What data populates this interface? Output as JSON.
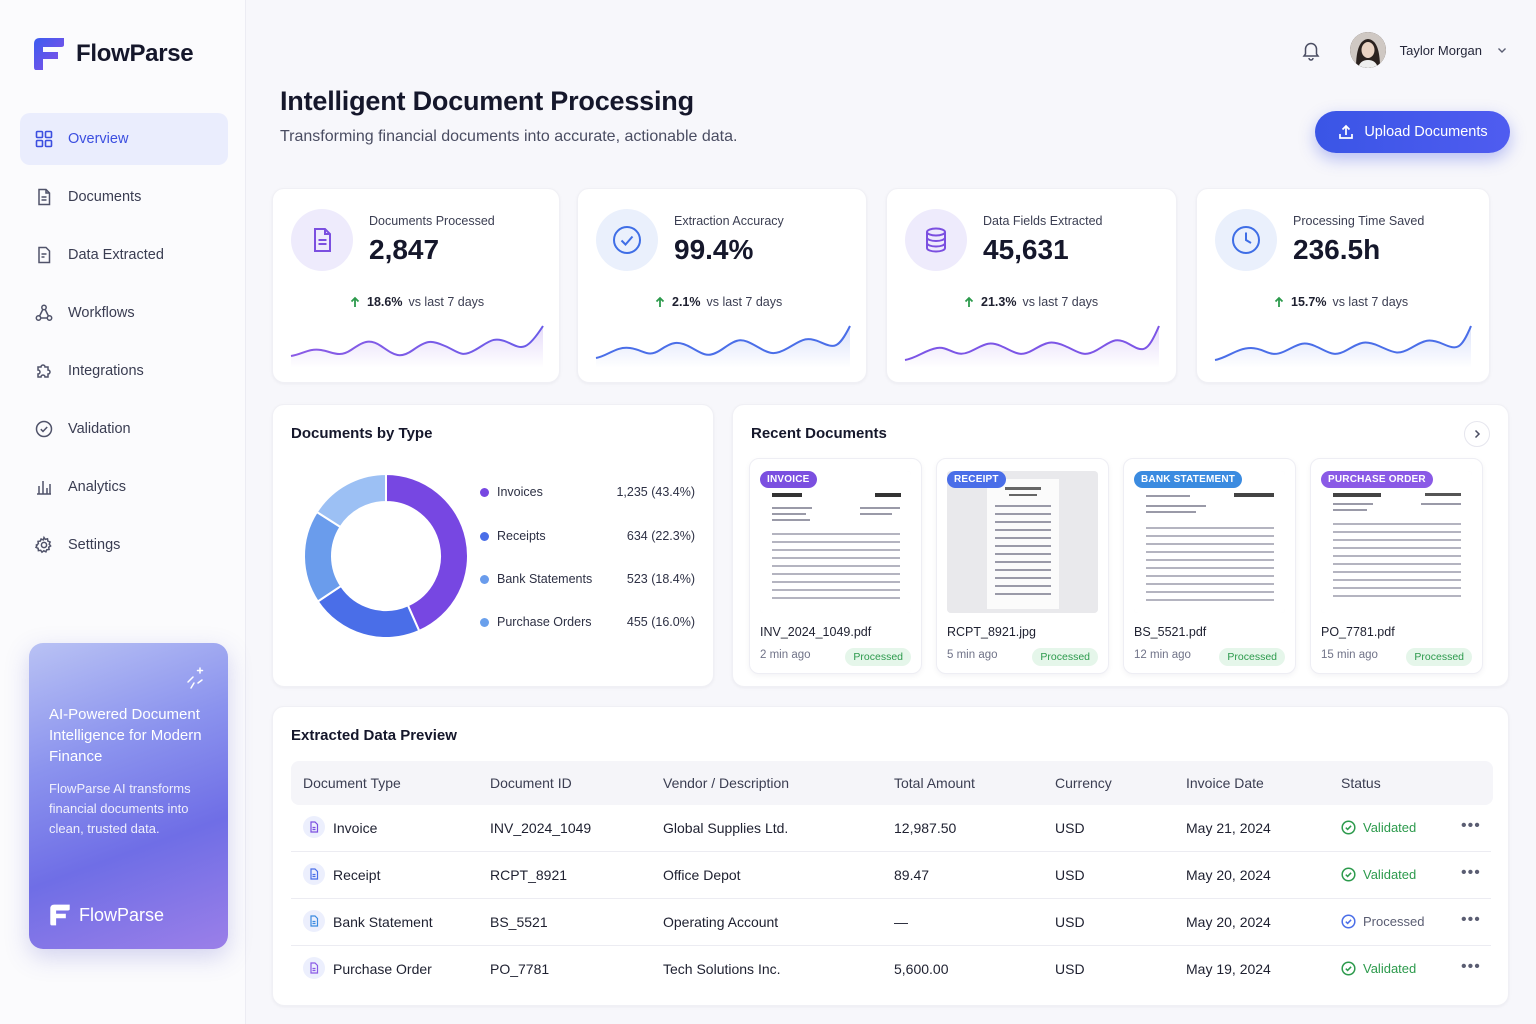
{
  "brand": {
    "name": "FlowParse"
  },
  "sidebar": {
    "items": [
      {
        "label": "Overview",
        "icon": "grid-icon",
        "active": true
      },
      {
        "label": "Documents",
        "icon": "document-icon"
      },
      {
        "label": "Data Extracted",
        "icon": "data-file-icon"
      },
      {
        "label": "Workflows",
        "icon": "workflow-icon"
      },
      {
        "label": "Integrations",
        "icon": "puzzle-icon"
      },
      {
        "label": "Validation",
        "icon": "check-circle-icon"
      },
      {
        "label": "Analytics",
        "icon": "bar-chart-icon"
      },
      {
        "label": "Settings",
        "icon": "gear-icon"
      }
    ],
    "promo": {
      "title": "AI-Powered Document Intelligence for Modern Finance",
      "body": "FlowParse AI transforms financial documents into clean, trusted data.",
      "logo": "FlowParse"
    }
  },
  "header": {
    "user_name": "Taylor Morgan",
    "notifications_icon": "bell-icon"
  },
  "page": {
    "title": "Intelligent Document Processing",
    "subtitle": "Transforming financial documents into accurate, actionable data.",
    "upload_label": "Upload Documents"
  },
  "stats": [
    {
      "label": "Documents Processed",
      "value": "2,847",
      "delta": "18.6%",
      "delta_text": "vs last 7 days",
      "icon": "document-icon",
      "color": "#7b4fe0",
      "bg": "#eeebfc"
    },
    {
      "label": "Extraction Accuracy",
      "value": "99.4%",
      "delta": "2.1%",
      "delta_text": "vs last 7 days",
      "icon": "check-circle-icon",
      "color": "#3f6ee6",
      "bg": "#eaf0fc"
    },
    {
      "label": "Data Fields Extracted",
      "value": "45,631",
      "delta": "21.3%",
      "delta_text": "vs last 7 days",
      "icon": "database-icon",
      "color": "#7b4fe0",
      "bg": "#eeebfc"
    },
    {
      "label": "Processing Time Saved",
      "value": "236.5h",
      "delta": "15.7%",
      "delta_text": "vs last 7 days",
      "icon": "clock-icon",
      "color": "#3f6ee6",
      "bg": "#eaf0fc"
    }
  ],
  "docs_by_type": {
    "title": "Documents by Type",
    "items": [
      {
        "label": "Invoices",
        "value": "1,235 (43.4%)",
        "pct": 43.4,
        "color": "#7747e2"
      },
      {
        "label": "Receipts",
        "value": "634 (22.3%)",
        "pct": 22.3,
        "color": "#4a6ee8"
      },
      {
        "label": "Bank Statements",
        "value": "523 (18.4%)",
        "pct": 18.4,
        "color": "#6a9cec"
      },
      {
        "label": "Purchase Orders",
        "value": "455 (16.0%)",
        "pct": 16.0,
        "color": "#9cc0f4"
      }
    ]
  },
  "recent": {
    "title": "Recent Documents",
    "items": [
      {
        "tag": "INVOICE",
        "tag_color": "#7b4fe0",
        "name": "INV_2024_1049.pdf",
        "time": "2 min ago",
        "status": "Processed"
      },
      {
        "tag": "RECEIPT",
        "tag_color": "#4a6ee8",
        "name": "RCPT_8921.jpg",
        "time": "5 min ago",
        "status": "Processed"
      },
      {
        "tag": "BANK STATEMENT",
        "tag_color": "#3b8be0",
        "name": "BS_5521.pdf",
        "time": "12 min ago",
        "status": "Processed"
      },
      {
        "tag": "PURCHASE ORDER",
        "tag_color": "#8a5ae6",
        "name": "PO_7781.pdf",
        "time": "15 min ago",
        "status": "Processed"
      }
    ]
  },
  "table": {
    "title": "Extracted Data Preview",
    "columns": [
      "Document Type",
      "Document ID",
      "Vendor / Description",
      "Total Amount",
      "Currency",
      "Invoice Date",
      "Status"
    ],
    "rows": [
      {
        "type": "Invoice",
        "id": "INV_2024_1049",
        "vendor": "Global Supplies Ltd.",
        "amount": "12,987.50",
        "currency": "USD",
        "date": "May 21, 2024",
        "status": "Validated",
        "status_kind": "validated"
      },
      {
        "type": "Receipt",
        "id": "RCPT_8921",
        "vendor": "Office Depot",
        "amount": "89.47",
        "currency": "USD",
        "date": "May 20, 2024",
        "status": "Validated",
        "status_kind": "validated"
      },
      {
        "type": "Bank Statement",
        "id": "BS_5521",
        "vendor": "Operating Account",
        "amount": "—",
        "currency": "USD",
        "date": "May 20, 2024",
        "status": "Processed",
        "status_kind": "processed"
      },
      {
        "type": "Purchase Order",
        "id": "PO_7781",
        "vendor": "Tech Solutions Inc.",
        "amount": "5,600.00",
        "currency": "USD",
        "date": "May 19, 2024",
        "status": "Validated",
        "status_kind": "validated"
      }
    ]
  }
}
